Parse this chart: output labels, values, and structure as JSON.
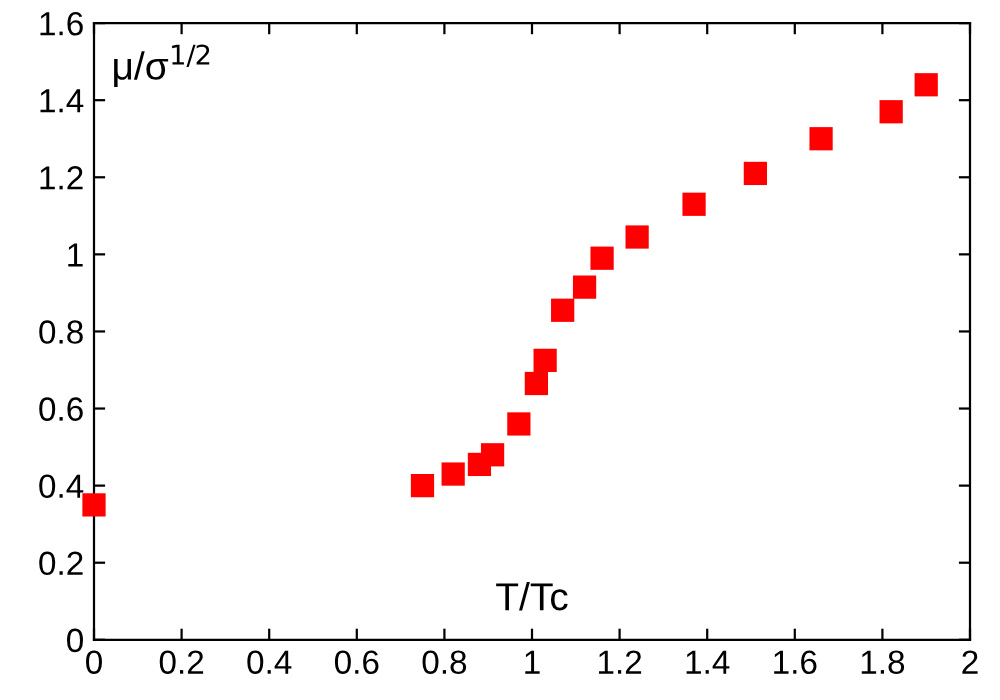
{
  "chart_data": {
    "type": "scatter",
    "xlabel": "T/Tc",
    "ylabel": "μ/σ$^{1/2}$",
    "x": [
      0,
      0.75,
      0.82,
      0.88,
      0.91,
      0.97,
      1.01,
      1.03,
      1.07,
      1.12,
      1.16,
      1.24,
      1.37,
      1.51,
      1.66,
      1.82,
      1.9
    ],
    "series": [
      {
        "color": "#ff0000",
        "values": [
          0.35,
          0.4,
          0.43,
          0.455,
          0.48,
          0.56,
          0.665,
          0.725,
          0.855,
          0.915,
          0.99,
          1.045,
          1.13,
          1.21,
          1.3,
          1.37,
          1.44
        ]
      }
    ],
    "marker": "square",
    "xlim": [
      0,
      2
    ],
    "ylim": [
      0,
      1.6
    ],
    "xticks": [
      0,
      0.2,
      0.4,
      0.6,
      0.8,
      1,
      1.2,
      1.4,
      1.6,
      1.8,
      2
    ],
    "yticks": [
      0,
      0.2,
      0.4,
      0.6,
      0.8,
      1,
      1.2,
      1.4,
      1.6
    ],
    "grid": false,
    "legend": false
  }
}
